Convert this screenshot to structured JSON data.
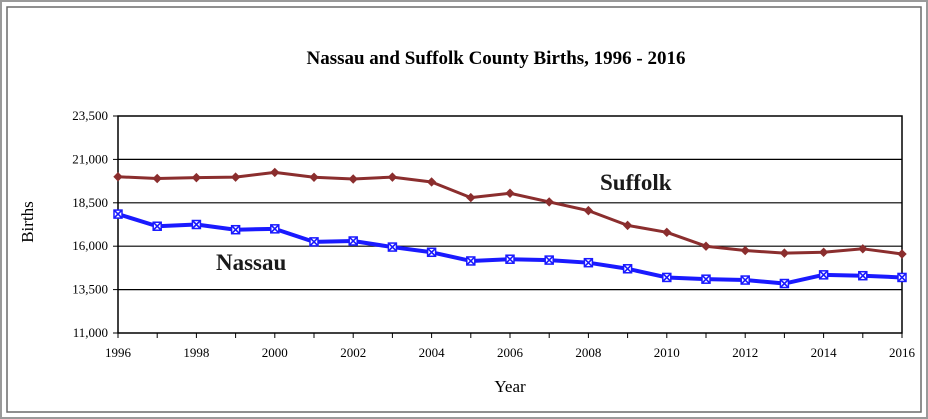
{
  "chart_data": {
    "type": "line",
    "title": "Nassau and Suffolk County Births, 1996 - 2016",
    "xlabel": "Year",
    "ylabel": "Births",
    "x": [
      1996,
      1997,
      1998,
      1999,
      2000,
      2001,
      2002,
      2003,
      2004,
      2005,
      2006,
      2007,
      2008,
      2009,
      2010,
      2011,
      2012,
      2013,
      2014,
      2015,
      2016
    ],
    "xticks": [
      "1996",
      "1998",
      "2000",
      "2002",
      "2004",
      "2006",
      "2008",
      "2010",
      "2012",
      "2014",
      "2016"
    ],
    "yticks": [
      "11,000",
      "13,500",
      "16,000",
      "18,500",
      "21,000",
      "23,500"
    ],
    "ylim": [
      11000,
      23500
    ],
    "xlim": [
      1996,
      2016
    ],
    "grid": "horizontal",
    "series": [
      {
        "name": "Suffolk",
        "color": "#8b2e2e",
        "marker": "diamond",
        "values": [
          20000,
          19900,
          19950,
          19980,
          20250,
          19970,
          19870,
          19980,
          19700,
          18800,
          19050,
          18550,
          18050,
          17200,
          16800,
          16000,
          15750,
          15600,
          15650,
          15850,
          15550
        ]
      },
      {
        "name": "Nassau",
        "color": "#1a1aff",
        "marker": "x",
        "values": [
          17850,
          17150,
          17250,
          16950,
          17000,
          16250,
          16300,
          15950,
          15650,
          15150,
          15250,
          15200,
          15050,
          14700,
          14200,
          14100,
          14050,
          13850,
          14350,
          14300,
          14200
        ]
      }
    ]
  }
}
